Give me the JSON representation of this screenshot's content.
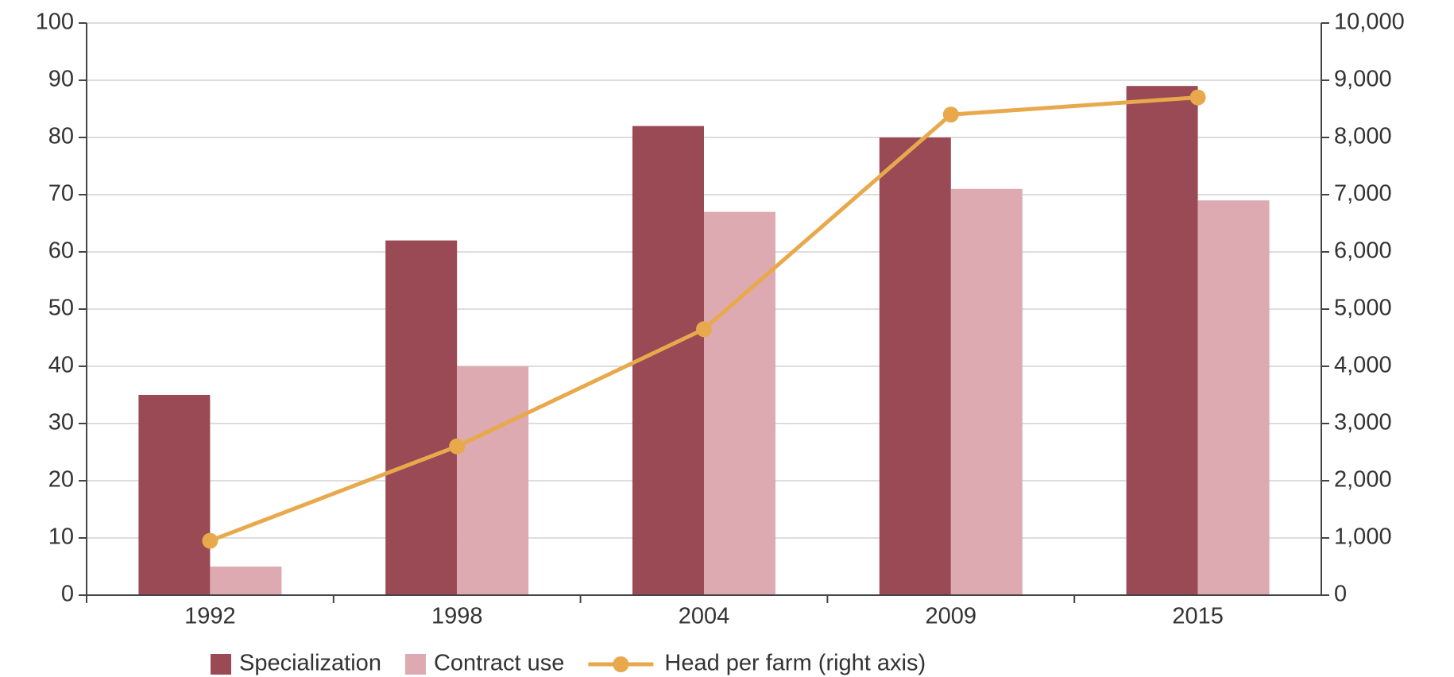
{
  "chart_data": {
    "type": "bar_line",
    "categories": [
      "1992",
      "1998",
      "2004",
      "2009",
      "2015"
    ],
    "series": [
      {
        "name": "Specialization",
        "color": "#9a4a55",
        "type": "bar",
        "values": [
          35,
          62,
          82,
          80,
          89
        ]
      },
      {
        "name": "Contract use",
        "color": "#dcaab0",
        "type": "bar",
        "values": [
          5,
          40,
          67,
          71,
          69
        ]
      },
      {
        "name": "Head per farm (right axis)",
        "color": "#e8a94c",
        "type": "line",
        "axis": "y2",
        "values": [
          950,
          2600,
          4650,
          8400,
          8700
        ]
      }
    ],
    "ylim": [
      0,
      100
    ],
    "yticks": [
      0,
      10,
      20,
      30,
      40,
      50,
      60,
      70,
      80,
      90,
      100
    ],
    "y2lim": [
      0,
      10000
    ],
    "y2ticks": [
      0,
      {
        "value": 1000,
        "label": "1,000"
      },
      {
        "value": 2000,
        "label": "2,000"
      },
      {
        "value": 3000,
        "label": "3,000"
      },
      {
        "value": 4000,
        "label": "4,000"
      },
      {
        "value": 5000,
        "label": "5,000"
      },
      {
        "value": 6000,
        "label": "6,000"
      },
      {
        "value": 7000,
        "label": "7,000"
      },
      {
        "value": 8000,
        "label": "8,000"
      },
      {
        "value": 9000,
        "label": "9,000"
      },
      {
        "value": 10000,
        "label": "10,000"
      }
    ],
    "grid": true
  }
}
